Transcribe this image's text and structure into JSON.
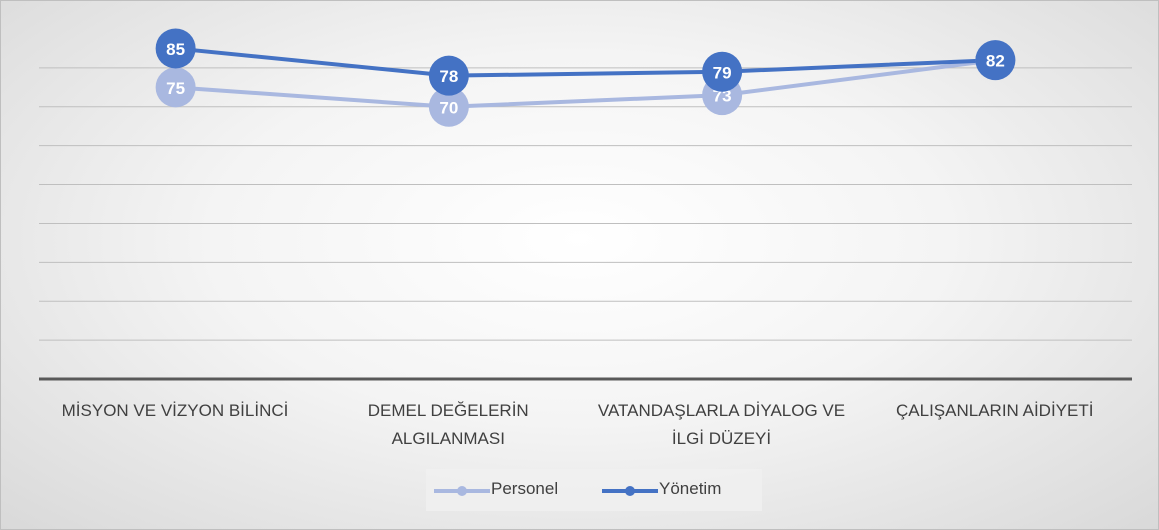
{
  "chart_data": {
    "type": "line",
    "categories": [
      "MİSYON VE VİZYON BİLİNCİ",
      "DEMEL DEĞELERİN ALGILANMASI",
      "VATANDAŞLARLA DİYALOG VE İLGİ DÜZEYİ",
      "ÇALIŞANLARIN AİDİYETİ"
    ],
    "series": [
      {
        "name": "Personel",
        "color": "#a9b8e0",
        "values": [
          75,
          70,
          73,
          82
        ]
      },
      {
        "name": "Yönetim",
        "color": "#4472c4",
        "values": [
          85,
          78,
          79,
          82
        ]
      }
    ],
    "ylim": [
      0,
      90
    ],
    "yticks": [
      0,
      10,
      20,
      30,
      40,
      50,
      60,
      70,
      80
    ],
    "grid": true,
    "legend": "bottom"
  }
}
